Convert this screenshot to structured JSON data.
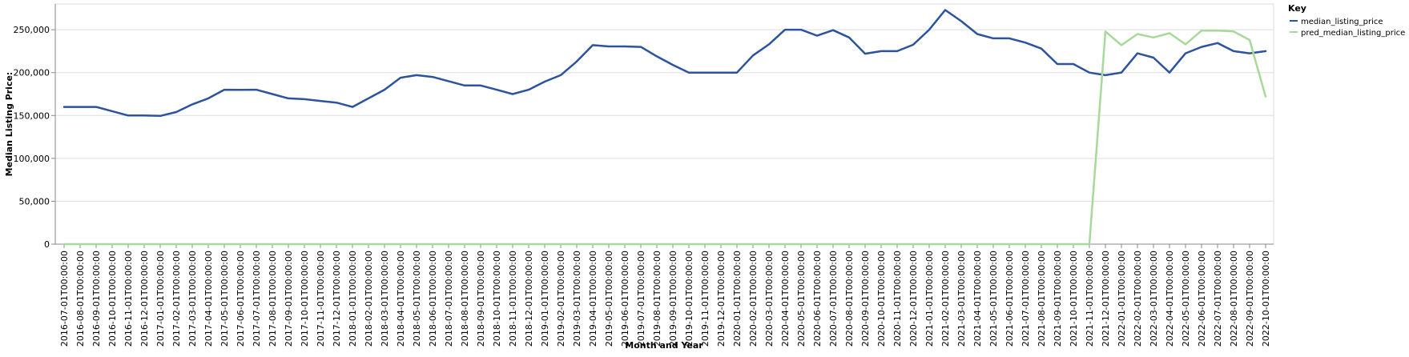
{
  "chart_data": {
    "type": "line",
    "title": "",
    "xlabel": "Month and Year",
    "ylabel": "Median Listing Price:",
    "ylim": [
      0,
      280000
    ],
    "yticks": [
      0,
      50000,
      100000,
      150000,
      200000,
      250000
    ],
    "ytick_labels": [
      "0",
      "50,000",
      "100,000",
      "150,000",
      "200,000",
      "250,000"
    ],
    "grid": true,
    "legend": {
      "title": "Key",
      "position": "top-right"
    },
    "categories": [
      "2016-07-01T00:00:00",
      "2016-08-01T00:00:00",
      "2016-09-01T00:00:00",
      "2016-10-01T00:00:00",
      "2016-11-01T00:00:00",
      "2016-12-01T00:00:00",
      "2017-01-01T00:00:00",
      "2017-02-01T00:00:00",
      "2017-03-01T00:00:00",
      "2017-04-01T00:00:00",
      "2017-05-01T00:00:00",
      "2017-06-01T00:00:00",
      "2017-07-01T00:00:00",
      "2017-08-01T00:00:00",
      "2017-09-01T00:00:00",
      "2017-10-01T00:00:00",
      "2017-11-01T00:00:00",
      "2017-12-01T00:00:00",
      "2018-01-01T00:00:00",
      "2018-02-01T00:00:00",
      "2018-03-01T00:00:00",
      "2018-04-01T00:00:00",
      "2018-05-01T00:00:00",
      "2018-06-01T00:00:00",
      "2018-07-01T00:00:00",
      "2018-08-01T00:00:00",
      "2018-09-01T00:00:00",
      "2018-10-01T00:00:00",
      "2018-11-01T00:00:00",
      "2018-12-01T00:00:00",
      "2019-01-01T00:00:00",
      "2019-02-01T00:00:00",
      "2019-03-01T00:00:00",
      "2019-04-01T00:00:00",
      "2019-05-01T00:00:00",
      "2019-06-01T00:00:00",
      "2019-07-01T00:00:00",
      "2019-08-01T00:00:00",
      "2019-09-01T00:00:00",
      "2019-10-01T00:00:00",
      "2019-11-01T00:00:00",
      "2019-12-01T00:00:00",
      "2020-01-01T00:00:00",
      "2020-02-01T00:00:00",
      "2020-03-01T00:00:00",
      "2020-04-01T00:00:00",
      "2020-05-01T00:00:00",
      "2020-06-01T00:00:00",
      "2020-07-01T00:00:00",
      "2020-08-01T00:00:00",
      "2020-09-01T00:00:00",
      "2020-10-01T00:00:00",
      "2020-11-01T00:00:00",
      "2020-12-01T00:00:00",
      "2021-01-01T00:00:00",
      "2021-02-01T00:00:00",
      "2021-03-01T00:00:00",
      "2021-04-01T00:00:00",
      "2021-05-01T00:00:00",
      "2021-06-01T00:00:00",
      "2021-07-01T00:00:00",
      "2021-08-01T00:00:00",
      "2021-09-01T00:00:00",
      "2021-10-01T00:00:00",
      "2021-11-01T00:00:00",
      "2021-12-01T00:00:00",
      "2022-01-01T00:00:00",
      "2022-02-01T00:00:00",
      "2022-03-01T00:00:00",
      "2022-04-01T00:00:00",
      "2022-05-01T00:00:00",
      "2022-06-01T00:00:00",
      "2022-07-01T00:00:00",
      "2022-08-01T00:00:00",
      "2022-09-01T00:00:00",
      "2022-10-01T00:00:00"
    ],
    "series": [
      {
        "name": "median_listing_price",
        "color": "#2c539e",
        "values": [
          160000,
          160000,
          160000,
          155000,
          150000,
          150000,
          149500,
          154000,
          163000,
          170000,
          180000,
          179900,
          180000,
          175000,
          170000,
          169000,
          167000,
          165000,
          160000,
          170000,
          180000,
          194000,
          197000,
          195000,
          190000,
          185000,
          185000,
          180000,
          175000,
          180000,
          189500,
          197000,
          213000,
          232000,
          230500,
          230500,
          230000,
          219000,
          209000,
          200000,
          200000,
          199900,
          200000,
          220000,
          233000,
          250000,
          250000,
          243000,
          249500,
          241000,
          222000,
          225000,
          225000,
          232500,
          250000,
          273000,
          260000,
          245000,
          240000,
          240000,
          235000,
          228000,
          210000,
          210000,
          200000,
          197000,
          200000,
          222500,
          217500,
          200000,
          222500,
          230000,
          234500,
          225000,
          222500,
          225000
        ]
      },
      {
        "name": "pred_median_listing_price",
        "color": "#a6d99a",
        "values": [
          0,
          0,
          0,
          0,
          0,
          0,
          0,
          0,
          0,
          0,
          0,
          0,
          0,
          0,
          0,
          0,
          0,
          0,
          0,
          0,
          0,
          0,
          0,
          0,
          0,
          0,
          0,
          0,
          0,
          0,
          0,
          0,
          0,
          0,
          0,
          0,
          0,
          0,
          0,
          0,
          0,
          0,
          0,
          0,
          0,
          0,
          0,
          0,
          0,
          0,
          0,
          0,
          0,
          0,
          0,
          0,
          0,
          0,
          0,
          0,
          0,
          0,
          0,
          0,
          0,
          248000,
          232000,
          245000,
          241000,
          246000,
          233000,
          249000,
          249000,
          248000,
          238000,
          172000
        ]
      }
    ]
  }
}
